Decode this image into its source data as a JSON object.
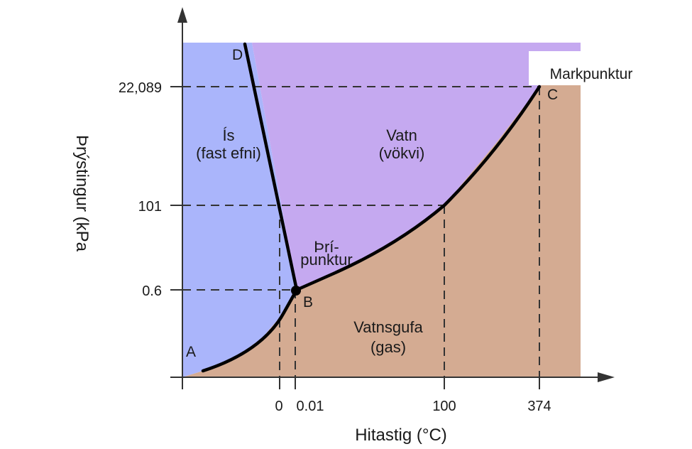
{
  "axes": {
    "x_title": "Hitastig (°C)",
    "y_title": "Þrýstingur (kPa",
    "x_ticks": [
      "0",
      "0.01",
      "100",
      "374"
    ],
    "y_ticks": [
      "22,089",
      "101",
      "0.6"
    ]
  },
  "regions": {
    "solid": {
      "line1": "Ís",
      "line2": "(fast efni)",
      "color": "#aab5fb"
    },
    "liquid": {
      "line1": "Vatn",
      "line2": "(vökvi)",
      "color": "#c5a9f0"
    },
    "gas": {
      "line1": "Vatnsgufa",
      "line2": "(gas)",
      "color": "#d4ab92"
    }
  },
  "points": {
    "A": "A",
    "B": "B",
    "C": "C",
    "D": "D"
  },
  "annotations": {
    "triple_line1": "Þrí-",
    "triple_line2": "punktur",
    "critical": "Markpunktur"
  }
}
